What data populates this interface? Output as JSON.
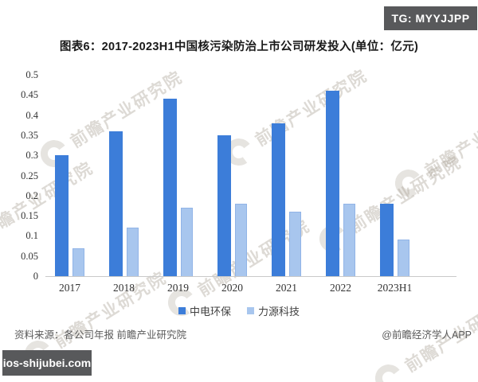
{
  "badges": {
    "tg": "TG: MYYJJPP",
    "site": "ios-shijubei.com"
  },
  "title": "图表6：2017-2023H1中国核污染防治上市公司研发投入(单位：亿元)",
  "watermark": {
    "text": "前瞻产业研究院"
  },
  "footer": {
    "source": "资料来源：各公司年报 前瞻产业研究院",
    "credit": "@前瞻经济学人APP"
  },
  "colors": {
    "series_dark": "#3c7dd9",
    "series_light": "#a8c6ee",
    "badge_bg": "#58595b",
    "axis_line": "#c9c9c9",
    "tick_text": "#333333",
    "source_text": "#595959",
    "watermark": "#a89f92"
  },
  "chart_data": {
    "type": "bar",
    "title": "图表6：2017-2023H1中国核污染防治上市公司研发投入(单位：亿元)",
    "unit": "亿元",
    "categories": [
      "2017",
      "2018",
      "2019",
      "2020",
      "2021",
      "2022",
      "2023H1"
    ],
    "series": [
      {
        "name": "中电环保",
        "color": "#3c7dd9",
        "values": [
          0.3,
          0.36,
          0.44,
          0.35,
          0.38,
          0.46,
          0.18
        ]
      },
      {
        "name": "力源科技",
        "color": "#a8c6ee",
        "values": [
          0.07,
          0.12,
          0.17,
          0.18,
          0.16,
          0.18,
          0.09
        ]
      }
    ],
    "xlabel": "",
    "ylabel": "",
    "ylim": [
      0,
      0.5
    ],
    "yticks": [
      "0",
      "0.05",
      "0.1",
      "0.15",
      "0.2",
      "0.25",
      "0.3",
      "0.35",
      "0.4",
      "0.45",
      "0.5"
    ],
    "grid": false,
    "legend_position": "bottom"
  }
}
